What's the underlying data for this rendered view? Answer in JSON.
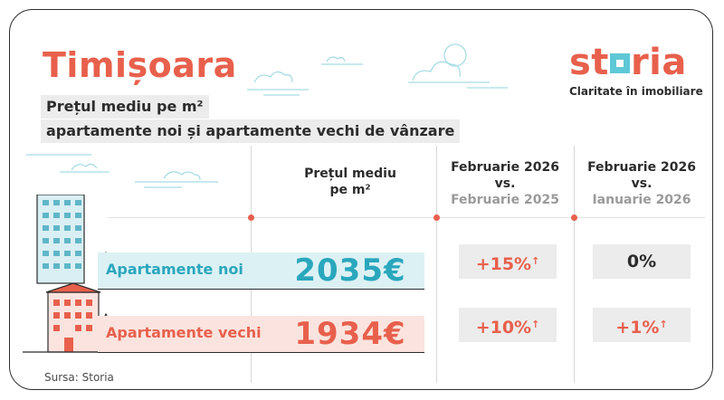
{
  "header": {
    "city": "Timișoara",
    "subtitle_line1": "Prețul mediu pe m²",
    "subtitle_line2": "apartamente noi și apartamente vechi de vânzare"
  },
  "brand": {
    "name_before": "st",
    "name_after": "ria",
    "tagline": "Claritate în imobiliare"
  },
  "columns": {
    "price": {
      "line1": "Prețul mediu",
      "line2": "pe m²"
    },
    "yoy": {
      "line1": "Februarie 2026",
      "line2": "vs.",
      "line3": "Februarie 2025"
    },
    "mom": {
      "line1": "Februarie 2026",
      "line2": "vs.",
      "line3": "Ianuarie 2026"
    }
  },
  "rows": {
    "new": {
      "label": "Apartamente noi",
      "price": "2035€",
      "yoy": "+15%",
      "mom": "0%"
    },
    "old": {
      "label": "Apartamente vechi",
      "price": "1934€",
      "yoy": "+10%",
      "mom": "+1%"
    }
  },
  "source": "Sursa: Storia",
  "colors": {
    "accent": "#e8604c",
    "teal": "#2aa7bd",
    "light_teal": "#dcf1f4",
    "light_red": "#fbe4df",
    "gray_box": "#ececec"
  }
}
